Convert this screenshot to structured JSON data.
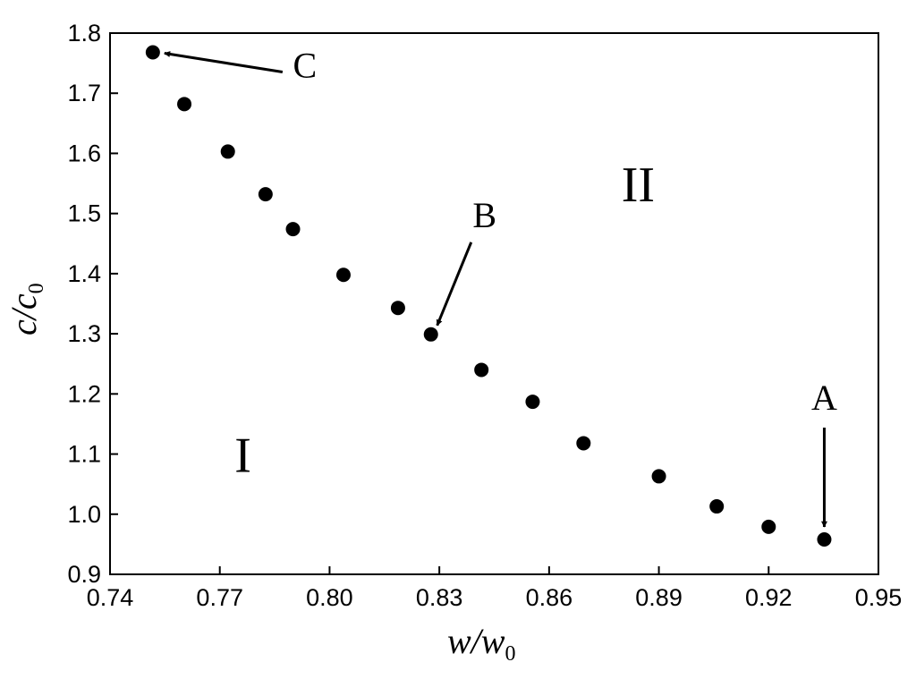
{
  "chart_data": {
    "type": "scatter",
    "title": "",
    "xlabel": {
      "main": "w/w",
      "sub": "0"
    },
    "ylabel": {
      "main": "c/c",
      "sub": "0"
    },
    "xlim": [
      0.74,
      0.95
    ],
    "ylim": [
      0.9,
      1.8
    ],
    "xticks": [
      "0.74",
      "0.77",
      "0.80",
      "0.83",
      "0.86",
      "0.89",
      "0.92",
      "0.95"
    ],
    "yticks": [
      "0.9",
      "1.0",
      "1.1",
      "1.2",
      "1.3",
      "1.4",
      "1.5",
      "1.6",
      "1.7",
      "1.8"
    ],
    "grid": false,
    "legend": "none",
    "series": [
      {
        "x": [
          0.7517,
          0.7603,
          0.7722,
          0.7825,
          0.79,
          0.8038,
          0.8187,
          0.8277,
          0.8415,
          0.8555,
          0.8694,
          0.89,
          0.9058,
          0.92,
          0.9352
        ],
        "y": [
          1.768,
          1.682,
          1.603,
          1.532,
          1.474,
          1.398,
          1.343,
          1.299,
          1.24,
          1.187,
          1.118,
          1.063,
          1.013,
          0.979,
          0.958
        ]
      }
    ],
    "annotations": [
      {
        "label": "A",
        "target": [
          0.9352,
          0.958
        ]
      },
      {
        "label": "B",
        "target": [
          0.8277,
          1.299
        ]
      },
      {
        "label": "C",
        "target": [
          0.7517,
          1.768
        ]
      }
    ],
    "regions": [
      {
        "label": "I",
        "at": [
          0.78,
          1.1
        ]
      },
      {
        "label": "II",
        "at": [
          0.888,
          1.55
        ]
      }
    ]
  }
}
